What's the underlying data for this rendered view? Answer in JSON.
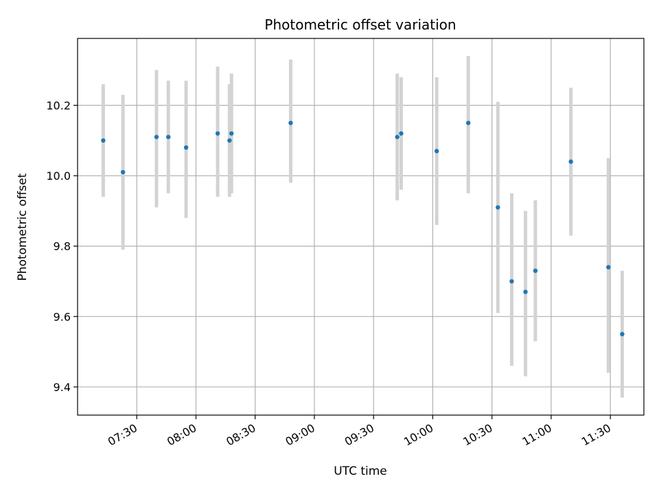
{
  "chart_data": {
    "type": "scatter",
    "title": "Photometric offset variation",
    "xlabel": "UTC time",
    "ylabel": "Photometric offset",
    "grid": true,
    "xlim": [
      "07:00",
      "11:47"
    ],
    "ylim": [
      9.32,
      10.39
    ],
    "x_ticks": [
      "07:30",
      "08:00",
      "08:30",
      "09:00",
      "09:30",
      "10:00",
      "10:30",
      "11:00",
      "11:30"
    ],
    "y_ticks": [
      9.4,
      9.6,
      9.8,
      10.0,
      10.2
    ],
    "y_tick_labels": [
      "9.4",
      "9.6",
      "9.8",
      "10.0",
      "10.2"
    ],
    "colors": {
      "points": "#1f77b4",
      "errorbars": "#d3d3d3",
      "grid": "#b0b0b0"
    },
    "points": [
      {
        "x": "07:13",
        "y": 10.1,
        "low": 9.94,
        "high": 10.26
      },
      {
        "x": "07:23",
        "y": 10.01,
        "low": 9.79,
        "high": 10.23
      },
      {
        "x": "07:40",
        "y": 10.11,
        "low": 9.91,
        "high": 10.3
      },
      {
        "x": "07:46",
        "y": 10.11,
        "low": 9.95,
        "high": 10.27
      },
      {
        "x": "07:55",
        "y": 10.08,
        "low": 9.88,
        "high": 10.27
      },
      {
        "x": "08:11",
        "y": 10.12,
        "low": 9.94,
        "high": 10.31
      },
      {
        "x": "08:17",
        "y": 10.1,
        "low": 9.94,
        "high": 10.26
      },
      {
        "x": "08:18",
        "y": 10.12,
        "low": 9.95,
        "high": 10.29
      },
      {
        "x": "08:48",
        "y": 10.15,
        "low": 9.98,
        "high": 10.33
      },
      {
        "x": "09:42",
        "y": 10.11,
        "low": 9.93,
        "high": 10.29
      },
      {
        "x": "09:44",
        "y": 10.12,
        "low": 9.96,
        "high": 10.28
      },
      {
        "x": "10:02",
        "y": 10.07,
        "low": 9.86,
        "high": 10.28
      },
      {
        "x": "10:18",
        "y": 10.15,
        "low": 9.95,
        "high": 10.34
      },
      {
        "x": "10:33",
        "y": 9.91,
        "low": 9.61,
        "high": 10.21
      },
      {
        "x": "10:40",
        "y": 9.7,
        "low": 9.46,
        "high": 9.95
      },
      {
        "x": "10:47",
        "y": 9.67,
        "low": 9.43,
        "high": 9.9
      },
      {
        "x": "10:52",
        "y": 9.73,
        "low": 9.53,
        "high": 9.93
      },
      {
        "x": "11:10",
        "y": 10.04,
        "low": 9.83,
        "high": 10.25
      },
      {
        "x": "11:29",
        "y": 9.74,
        "low": 9.44,
        "high": 10.05
      },
      {
        "x": "11:36",
        "y": 9.55,
        "low": 9.37,
        "high": 9.73
      }
    ]
  }
}
